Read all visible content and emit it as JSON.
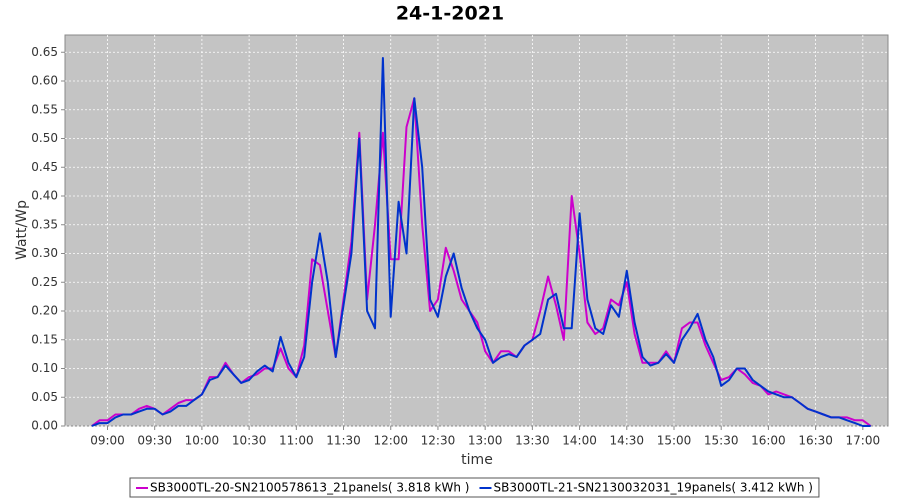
{
  "chart_data": {
    "type": "line",
    "title": "24-1-2021",
    "y_label": "Watt/Wp",
    "x_label": "time",
    "x": [
      "08:50",
      "08:55",
      "09:00",
      "09:05",
      "09:10",
      "09:15",
      "09:20",
      "09:25",
      "09:30",
      "09:35",
      "09:40",
      "09:45",
      "09:50",
      "09:55",
      "10:00",
      "10:05",
      "10:10",
      "10:15",
      "10:20",
      "10:25",
      "10:30",
      "10:35",
      "10:40",
      "10:45",
      "10:50",
      "10:55",
      "11:00",
      "11:05",
      "11:10",
      "11:15",
      "11:20",
      "11:25",
      "11:30",
      "11:35",
      "11:40",
      "11:45",
      "11:50",
      "11:55",
      "12:00",
      "12:05",
      "12:10",
      "12:15",
      "12:20",
      "12:25",
      "12:30",
      "12:35",
      "12:40",
      "12:45",
      "12:50",
      "12:55",
      "13:00",
      "13:05",
      "13:10",
      "13:15",
      "13:20",
      "13:25",
      "13:30",
      "13:35",
      "13:40",
      "13:45",
      "13:50",
      "13:55",
      "14:00",
      "14:05",
      "14:10",
      "14:15",
      "14:20",
      "14:25",
      "14:30",
      "14:35",
      "14:40",
      "14:45",
      "14:50",
      "14:55",
      "15:00",
      "15:05",
      "15:10",
      "15:15",
      "15:20",
      "15:25",
      "15:30",
      "15:35",
      "15:40",
      "15:45",
      "15:50",
      "15:55",
      "16:00",
      "16:05",
      "16:10",
      "16:15",
      "16:20",
      "16:25",
      "16:30",
      "16:35",
      "16:40",
      "16:45",
      "16:50",
      "16:55",
      "17:00",
      "17:05"
    ],
    "series": [
      {
        "name": "SB3000TL-20-SN2100578613_21panels( 3.818 kWh )",
        "color": "#cc00cc",
        "values": [
          0,
          0.01,
          0.01,
          0.02,
          0.02,
          0.02,
          0.03,
          0.035,
          0.03,
          0.02,
          0.03,
          0.04,
          0.045,
          0.045,
          0.055,
          0.085,
          0.085,
          0.11,
          0.09,
          0.075,
          0.085,
          0.09,
          0.1,
          0.1,
          0.135,
          0.1,
          0.085,
          0.14,
          0.29,
          0.28,
          0.2,
          0.12,
          0.22,
          0.32,
          0.51,
          0.22,
          0.35,
          0.51,
          0.29,
          0.29,
          0.52,
          0.57,
          0.35,
          0.2,
          0.22,
          0.31,
          0.27,
          0.22,
          0.2,
          0.18,
          0.13,
          0.11,
          0.13,
          0.13,
          0.12,
          0.14,
          0.15,
          0.2,
          0.26,
          0.21,
          0.15,
          0.4,
          0.3,
          0.18,
          0.16,
          0.17,
          0.22,
          0.21,
          0.25,
          0.16,
          0.11,
          0.11,
          0.11,
          0.13,
          0.11,
          0.17,
          0.18,
          0.18,
          0.14,
          0.11,
          0.08,
          0.085,
          0.1,
          0.09,
          0.075,
          0.07,
          0.055,
          0.06,
          0.055,
          0.05,
          0.04,
          0.03,
          0.025,
          0.02,
          0.015,
          0.015,
          0.015,
          0.01,
          0.01,
          0
        ]
      },
      {
        "name": "SB3000TL-21-SN2130032031_19panels( 3.412 kWh )",
        "color": "#0033cc",
        "values": [
          0,
          0.005,
          0.005,
          0.015,
          0.02,
          0.02,
          0.025,
          0.03,
          0.03,
          0.02,
          0.025,
          0.035,
          0.035,
          0.045,
          0.055,
          0.08,
          0.085,
          0.105,
          0.09,
          0.075,
          0.08,
          0.095,
          0.105,
          0.095,
          0.155,
          0.11,
          0.085,
          0.12,
          0.25,
          0.335,
          0.25,
          0.12,
          0.21,
          0.3,
          0.5,
          0.2,
          0.17,
          0.64,
          0.19,
          0.39,
          0.3,
          0.57,
          0.45,
          0.22,
          0.19,
          0.26,
          0.3,
          0.24,
          0.2,
          0.17,
          0.15,
          0.11,
          0.12,
          0.125,
          0.12,
          0.14,
          0.15,
          0.16,
          0.22,
          0.23,
          0.17,
          0.17,
          0.37,
          0.22,
          0.17,
          0.16,
          0.21,
          0.19,
          0.27,
          0.18,
          0.12,
          0.105,
          0.11,
          0.125,
          0.11,
          0.15,
          0.17,
          0.195,
          0.15,
          0.12,
          0.07,
          0.08,
          0.1,
          0.1,
          0.08,
          0.07,
          0.06,
          0.055,
          0.05,
          0.05,
          0.04,
          0.03,
          0.025,
          0.02,
          0.015,
          0.015,
          0.01,
          0.005,
          0,
          0
        ]
      }
    ],
    "xlim": [
      "08:33",
      "17:16"
    ],
    "xticks": [
      "09:00",
      "09:30",
      "10:00",
      "10:30",
      "11:00",
      "11:30",
      "12:00",
      "12:30",
      "13:00",
      "13:30",
      "14:00",
      "14:30",
      "15:00",
      "15:30",
      "16:00",
      "16:30",
      "17:00"
    ],
    "ylim": [
      0,
      0.68
    ],
    "yticks": [
      {
        "value": 0,
        "label": "0.00"
      },
      {
        "value": 0.05,
        "label": "0.05"
      },
      {
        "value": 0.1,
        "label": "0.10"
      },
      {
        "value": 0.15,
        "label": "0.15"
      },
      {
        "value": 0.2,
        "label": "0.20"
      },
      {
        "value": 0.25,
        "label": "0.25"
      },
      {
        "value": 0.3,
        "label": "0.30"
      },
      {
        "value": 0.35,
        "label": "0.35"
      },
      {
        "value": 0.4,
        "label": "0.40"
      },
      {
        "value": 0.45,
        "label": "0.45"
      },
      {
        "value": 0.5,
        "label": "0.50"
      },
      {
        "value": 0.55,
        "label": "0.55"
      },
      {
        "value": 0.6,
        "label": "0.60"
      },
      {
        "value": 0.65,
        "label": "0.65"
      }
    ],
    "grid": true,
    "legend": "bottom"
  }
}
